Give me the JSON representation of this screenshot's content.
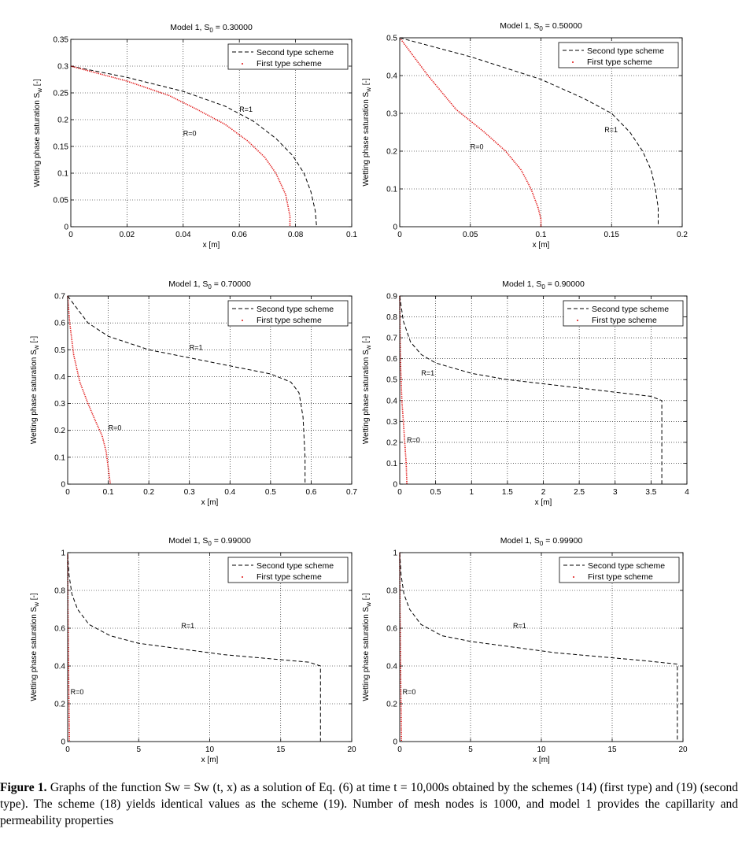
{
  "chart_data": [
    {
      "type": "line",
      "title_prefix": "Model 1, S",
      "title_sub": "0",
      "title_value": " = 0.30000",
      "xlabel": "x [m]",
      "ylabel_prefix": "Wetting phase saturation S",
      "ylabel_sub": "w",
      "ylabel_suffix": " [-]",
      "xlim": [
        0,
        0.1
      ],
      "ylim": [
        0,
        0.35
      ],
      "xticks": [
        "0",
        "0.02",
        "0.04",
        "0.06",
        "0.08",
        "0.1"
      ],
      "xtick_values": [
        0,
        0.02,
        0.04,
        0.06,
        0.08,
        0.1
      ],
      "yticks": [
        "0",
        "0.05",
        "0.1",
        "0.15",
        "0.2",
        "0.25",
        "0.3",
        "0.35"
      ],
      "ytick_values": [
        0,
        0.05,
        0.1,
        0.15,
        0.2,
        0.25,
        0.3,
        0.35
      ],
      "grid": true,
      "legend": {
        "position": "top-right",
        "entries": [
          "Second type scheme",
          "First type scheme"
        ]
      },
      "series": [
        {
          "name": "Second type scheme",
          "style": "dashed",
          "color": "#000000",
          "points": [
            [
              0,
              0.3
            ],
            [
              0.02,
              0.279
            ],
            [
              0.04,
              0.253
            ],
            [
              0.055,
              0.225
            ],
            [
              0.065,
              0.197
            ],
            [
              0.073,
              0.165
            ],
            [
              0.079,
              0.133
            ],
            [
              0.083,
              0.1
            ],
            [
              0.0855,
              0.065
            ],
            [
              0.087,
              0.03
            ],
            [
              0.0875,
              0
            ]
          ]
        },
        {
          "name": "First type scheme",
          "style": "dotted",
          "color": "#e01010",
          "points": [
            [
              0,
              0.3
            ],
            [
              0.02,
              0.272
            ],
            [
              0.035,
              0.245
            ],
            [
              0.045,
              0.219
            ],
            [
              0.055,
              0.191
            ],
            [
              0.063,
              0.16
            ],
            [
              0.069,
              0.13
            ],
            [
              0.073,
              0.1
            ],
            [
              0.0765,
              0.06
            ],
            [
              0.078,
              0.02
            ],
            [
              0.078,
              0
            ]
          ]
        }
      ],
      "annotations": [
        {
          "text": "R=1",
          "x": 0.06,
          "y": 0.215
        },
        {
          "text": "R=0",
          "x": 0.04,
          "y": 0.17
        }
      ]
    },
    {
      "type": "line",
      "title_prefix": "Model 1, S",
      "title_sub": "0",
      "title_value": " = 0.50000",
      "xlabel": "x [m]",
      "ylabel_prefix": "Wetting phase saturation S",
      "ylabel_sub": "w",
      "ylabel_suffix": " [-]",
      "xlim": [
        0,
        0.2
      ],
      "ylim": [
        0,
        0.5
      ],
      "xticks": [
        "0",
        "0.05",
        "0.1",
        "0.15",
        "0.2"
      ],
      "xtick_values": [
        0,
        0.05,
        0.1,
        0.15,
        0.2
      ],
      "yticks": [
        "0",
        "0.1",
        "0.2",
        "0.3",
        "0.4",
        "0.5"
      ],
      "ytick_values": [
        0,
        0.1,
        0.2,
        0.3,
        0.4,
        0.5
      ],
      "grid": true,
      "legend": {
        "position": "top-right",
        "entries": [
          "Second type scheme",
          "First type scheme"
        ]
      },
      "series": [
        {
          "name": "Second type scheme",
          "style": "dashed",
          "color": "#000000",
          "points": [
            [
              0,
              0.5
            ],
            [
              0.05,
              0.45
            ],
            [
              0.1,
              0.39
            ],
            [
              0.13,
              0.34
            ],
            [
              0.15,
              0.3
            ],
            [
              0.163,
              0.25
            ],
            [
              0.172,
              0.2
            ],
            [
              0.178,
              0.15
            ],
            [
              0.181,
              0.1
            ],
            [
              0.183,
              0.05
            ],
            [
              0.183,
              0
            ]
          ]
        },
        {
          "name": "First type scheme",
          "style": "dotted",
          "color": "#e01010",
          "points": [
            [
              0,
              0.5
            ],
            [
              0.02,
              0.4
            ],
            [
              0.04,
              0.31
            ],
            [
              0.06,
              0.25
            ],
            [
              0.075,
              0.2
            ],
            [
              0.086,
              0.15
            ],
            [
              0.093,
              0.1
            ],
            [
              0.098,
              0.05
            ],
            [
              0.1,
              0.02
            ],
            [
              0.1,
              0
            ]
          ]
        }
      ],
      "annotations": [
        {
          "text": "R=1",
          "x": 0.145,
          "y": 0.25
        },
        {
          "text": "R=0",
          "x": 0.05,
          "y": 0.205
        }
      ]
    },
    {
      "type": "line",
      "title_prefix": "Model 1, S",
      "title_sub": "0",
      "title_value": " = 0.70000",
      "xlabel": "x [m]",
      "ylabel_prefix": "Wetting phase saturation S",
      "ylabel_sub": "w",
      "ylabel_suffix": " [-]",
      "xlim": [
        0,
        0.7
      ],
      "ylim": [
        0,
        0.7
      ],
      "xticks": [
        "0",
        "0.1",
        "0.2",
        "0.3",
        "0.4",
        "0.5",
        "0.6",
        "0.7"
      ],
      "xtick_values": [
        0,
        0.1,
        0.2,
        0.3,
        0.4,
        0.5,
        0.6,
        0.7
      ],
      "yticks": [
        "0",
        "0.1",
        "0.2",
        "0.3",
        "0.4",
        "0.5",
        "0.6",
        "0.7"
      ],
      "ytick_values": [
        0,
        0.1,
        0.2,
        0.3,
        0.4,
        0.5,
        0.6,
        0.7
      ],
      "grid": true,
      "legend": {
        "position": "top-right",
        "entries": [
          "Second type scheme",
          "First type scheme"
        ]
      },
      "series": [
        {
          "name": "Second type scheme",
          "style": "dashed",
          "color": "#000000",
          "points": [
            [
              0,
              0.7
            ],
            [
              0.02,
              0.66
            ],
            [
              0.05,
              0.6
            ],
            [
              0.1,
              0.55
            ],
            [
              0.2,
              0.5
            ],
            [
              0.3,
              0.47
            ],
            [
              0.4,
              0.44
            ],
            [
              0.5,
              0.41
            ],
            [
              0.55,
              0.38
            ],
            [
              0.57,
              0.34
            ],
            [
              0.58,
              0.25
            ],
            [
              0.585,
              0.1
            ],
            [
              0.585,
              0
            ]
          ]
        },
        {
          "name": "First type scheme",
          "style": "dotted",
          "color": "#e01010",
          "points": [
            [
              0,
              0.7
            ],
            [
              0.005,
              0.6
            ],
            [
              0.015,
              0.48
            ],
            [
              0.03,
              0.38
            ],
            [
              0.05,
              0.3
            ],
            [
              0.07,
              0.23
            ],
            [
              0.085,
              0.18
            ],
            [
              0.095,
              0.12
            ],
            [
              0.1,
              0.06
            ],
            [
              0.105,
              0
            ]
          ]
        }
      ],
      "annotations": [
        {
          "text": "R=1",
          "x": 0.3,
          "y": 0.5
        },
        {
          "text": "R=0",
          "x": 0.1,
          "y": 0.2
        }
      ]
    },
    {
      "type": "line",
      "title_prefix": "Model 1, S",
      "title_sub": "0",
      "title_value": " = 0.90000",
      "xlabel": "x [m]",
      "ylabel_prefix": "Wetting phase saturation S",
      "ylabel_sub": "w",
      "ylabel_suffix": " [-]",
      "xlim": [
        0,
        4
      ],
      "ylim": [
        0,
        0.9
      ],
      "xticks": [
        "0",
        "0.5",
        "1",
        "1.5",
        "2",
        "2.5",
        "3",
        "3.5",
        "4"
      ],
      "xtick_values": [
        0,
        0.5,
        1,
        1.5,
        2,
        2.5,
        3,
        3.5,
        4
      ],
      "yticks": [
        "0",
        "0.1",
        "0.2",
        "0.3",
        "0.4",
        "0.5",
        "0.6",
        "0.7",
        "0.8",
        "0.9"
      ],
      "ytick_values": [
        0,
        0.1,
        0.2,
        0.3,
        0.4,
        0.5,
        0.6,
        0.7,
        0.8,
        0.9
      ],
      "grid": true,
      "legend": {
        "position": "top-right",
        "entries": [
          "Second type scheme",
          "First type scheme"
        ]
      },
      "series": [
        {
          "name": "Second type scheme",
          "style": "dashed",
          "color": "#000000",
          "points": [
            [
              0,
              0.9
            ],
            [
              0.05,
              0.78
            ],
            [
              0.15,
              0.68
            ],
            [
              0.3,
              0.62
            ],
            [
              0.5,
              0.58
            ],
            [
              1,
              0.53
            ],
            [
              1.5,
              0.5
            ],
            [
              2,
              0.48
            ],
            [
              2.5,
              0.46
            ],
            [
              3,
              0.44
            ],
            [
              3.5,
              0.42
            ],
            [
              3.65,
              0.4
            ],
            [
              3.65,
              0
            ]
          ]
        },
        {
          "name": "First type scheme",
          "style": "dotted",
          "color": "#e01010",
          "points": [
            [
              0,
              0.9
            ],
            [
              0.01,
              0.6
            ],
            [
              0.03,
              0.4
            ],
            [
              0.05,
              0.3
            ],
            [
              0.07,
              0.2
            ],
            [
              0.09,
              0.1
            ],
            [
              0.1,
              0
            ]
          ]
        }
      ],
      "annotations": [
        {
          "text": "R=1",
          "x": 0.3,
          "y": 0.52
        },
        {
          "text": "R=0",
          "x": 0.1,
          "y": 0.2
        }
      ]
    },
    {
      "type": "line",
      "title_prefix": "Model 1, S",
      "title_sub": "0",
      "title_value": " = 0.99000",
      "xlabel": "x [m]",
      "ylabel_prefix": "Wetting phase saturation S",
      "ylabel_sub": "w",
      "ylabel_suffix": " [-]",
      "xlim": [
        0,
        20
      ],
      "ylim": [
        0,
        1
      ],
      "xticks": [
        "0",
        "5",
        "10",
        "15",
        "20"
      ],
      "xtick_values": [
        0,
        5,
        10,
        15,
        20
      ],
      "yticks": [
        "0",
        "0.2",
        "0.4",
        "0.6",
        "0.8",
        "1"
      ],
      "ytick_values": [
        0,
        0.2,
        0.4,
        0.6,
        0.8,
        1
      ],
      "grid": true,
      "legend": {
        "position": "top-right",
        "entries": [
          "Second type scheme",
          "First type scheme"
        ]
      },
      "series": [
        {
          "name": "Second type scheme",
          "style": "dashed",
          "color": "#000000",
          "points": [
            [
              0,
              0.99
            ],
            [
              0.1,
              0.88
            ],
            [
              0.3,
              0.78
            ],
            [
              0.7,
              0.7
            ],
            [
              1.5,
              0.62
            ],
            [
              3,
              0.56
            ],
            [
              5,
              0.52
            ],
            [
              8,
              0.49
            ],
            [
              11,
              0.46
            ],
            [
              14,
              0.44
            ],
            [
              17,
              0.42
            ],
            [
              17.8,
              0.4
            ],
            [
              17.8,
              0
            ]
          ]
        },
        {
          "name": "First type scheme",
          "style": "dotted",
          "color": "#e01010",
          "points": [
            [
              0,
              0.99
            ],
            [
              0.02,
              0.7
            ],
            [
              0.05,
              0.5
            ],
            [
              0.08,
              0.3
            ],
            [
              0.1,
              0.15
            ],
            [
              0.12,
              0
            ]
          ]
        }
      ],
      "annotations": [
        {
          "text": "R=1",
          "x": 8,
          "y": 0.6
        },
        {
          "text": "R=0",
          "x": 0.2,
          "y": 0.25
        }
      ]
    },
    {
      "type": "line",
      "title_prefix": "Model 1, S",
      "title_sub": "0",
      "title_value": " = 0.99900",
      "xlabel": "x [m]",
      "ylabel_prefix": "Wetting phase saturation S",
      "ylabel_sub": "w",
      "ylabel_suffix": " [-]",
      "xlim": [
        0,
        20
      ],
      "ylim": [
        0,
        1
      ],
      "xticks": [
        "0",
        "5",
        "10",
        "15",
        "20"
      ],
      "xtick_values": [
        0,
        5,
        10,
        15,
        20
      ],
      "yticks": [
        "0",
        "0.2",
        "0.4",
        "0.6",
        "0.8",
        "1"
      ],
      "ytick_values": [
        0,
        0.2,
        0.4,
        0.6,
        0.8,
        1
      ],
      "grid": true,
      "legend": {
        "position": "top-right",
        "entries": [
          "Second type scheme",
          "First type scheme"
        ]
      },
      "series": [
        {
          "name": "Second type scheme",
          "style": "dashed",
          "color": "#000000",
          "points": [
            [
              0,
              0.999
            ],
            [
              0.1,
              0.88
            ],
            [
              0.3,
              0.78
            ],
            [
              0.7,
              0.7
            ],
            [
              1.5,
              0.62
            ],
            [
              3,
              0.56
            ],
            [
              5,
              0.53
            ],
            [
              8,
              0.5
            ],
            [
              11,
              0.47
            ],
            [
              14,
              0.45
            ],
            [
              17,
              0.43
            ],
            [
              19.6,
              0.41
            ],
            [
              19.6,
              0
            ]
          ]
        },
        {
          "name": "First type scheme",
          "style": "dotted",
          "color": "#e01010",
          "points": [
            [
              0,
              0.999
            ],
            [
              0.02,
              0.7
            ],
            [
              0.05,
              0.5
            ],
            [
              0.08,
              0.3
            ],
            [
              0.1,
              0.15
            ],
            [
              0.12,
              0
            ]
          ]
        }
      ],
      "annotations": [
        {
          "text": "R=1",
          "x": 8,
          "y": 0.6
        },
        {
          "text": "R=0",
          "x": 0.2,
          "y": 0.25
        }
      ]
    }
  ],
  "caption": {
    "label": "Figure 1.",
    "text": " Graphs of the function Sw = Sw (t, x) as a solution of Eq. (6) at time t = 10,000s obtained by the schemes (14) (first type) and (19) (second type). The scheme (18) yields identical values as the scheme (19). Number of mesh nodes is 1000, and model 1 provides the capillarity and permeability properties"
  }
}
